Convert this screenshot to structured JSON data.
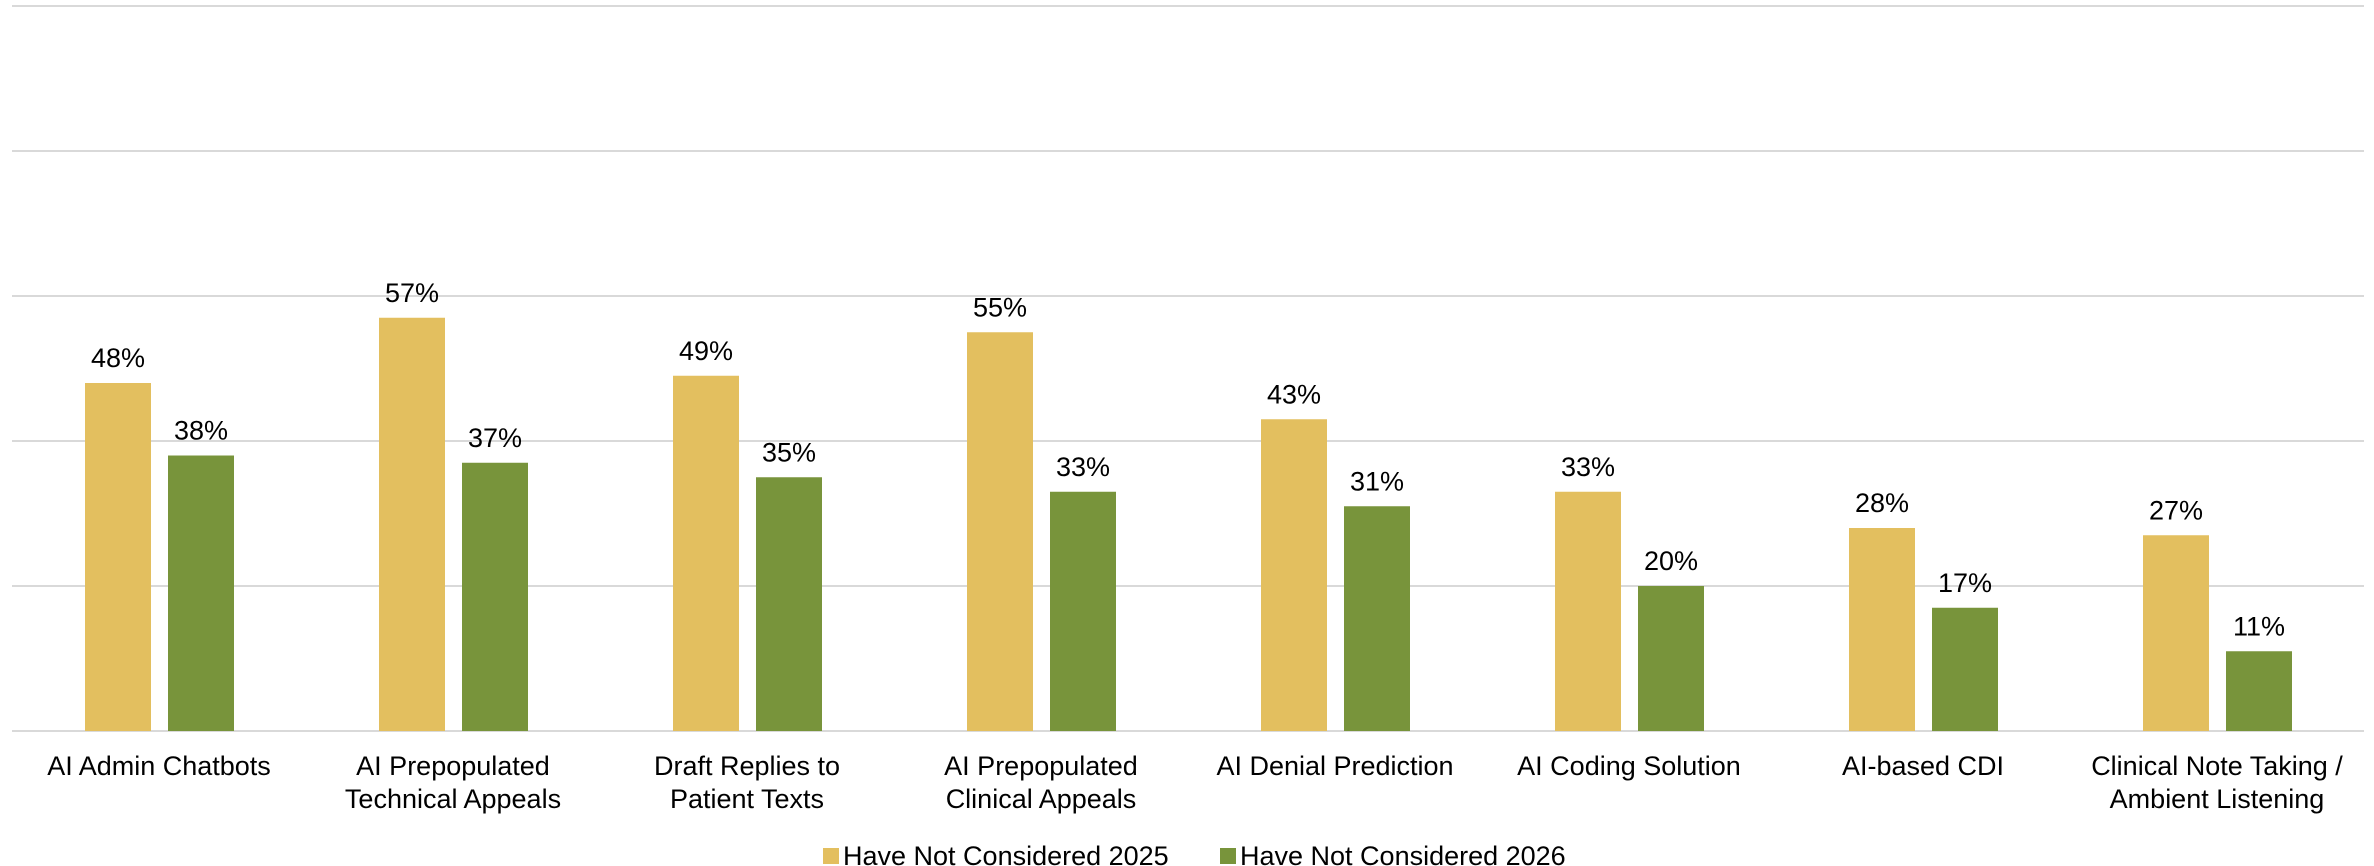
{
  "chart_data": {
    "type": "bar",
    "categories": [
      "AI Admin Chatbots",
      "AI Prepopulated\nTechnical Appeals",
      "Draft Replies to\nPatient Texts",
      "AI Prepopulated\nClinical Appeals",
      "AI Denial Prediction",
      "AI Coding Solution",
      "AI-based CDI",
      "Clinical Note Taking /\nAmbient Listening"
    ],
    "series": [
      {
        "name": "Have Not Considered 2025",
        "color": "#e3bf5f",
        "values": [
          48,
          57,
          49,
          55,
          43,
          33,
          28,
          27
        ],
        "value_labels": [
          "48%",
          "57%",
          "49%",
          "55%",
          "43%",
          "33%",
          "28%",
          "27%"
        ]
      },
      {
        "name": "Have Not Considered 2026",
        "color": "#78943b",
        "values": [
          38,
          37,
          35,
          33,
          31,
          20,
          17,
          11
        ],
        "value_labels": [
          "38%",
          "37%",
          "35%",
          "33%",
          "31%",
          "20%",
          "17%",
          "11%"
        ]
      }
    ],
    "ylim": [
      0,
      100
    ],
    "yticks": [
      0,
      20,
      40,
      60,
      80,
      100
    ],
    "grid": true,
    "legend": "bottom"
  }
}
